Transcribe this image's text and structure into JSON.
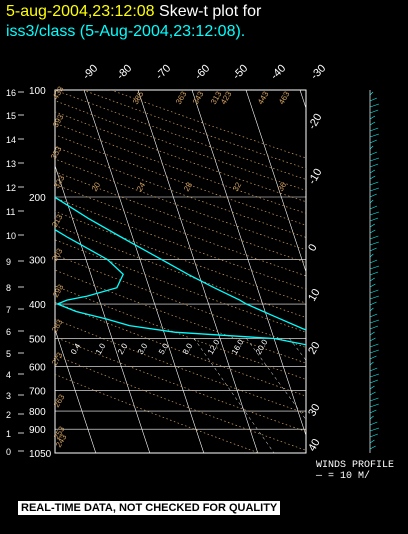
{
  "header": {
    "timestamp": "5-aug-2004,23:12:08",
    "title_prefix": "Skew-t plot for",
    "title_line2": "iss3/class (5-Aug-2004,23:12:08)."
  },
  "disclaimer": "REAL-TIME DATA, NOT CHECKED FOR QUALITY",
  "winds_profile": {
    "title": "WINDS PROFILE",
    "scale": "— = 10 M/"
  },
  "colors": {
    "background": "#000000",
    "trace": "#00ffff",
    "grid": "#ffffff",
    "adiabat": "#d2a060",
    "timestamp": "#ffff00"
  },
  "chart_data": {
    "type": "line",
    "pressure_ticks": [
      "100",
      "200",
      "300",
      "400",
      "500",
      "600",
      "700",
      "800",
      "900",
      "1050"
    ],
    "km_ticks": [
      "16",
      "15",
      "14",
      "13",
      "12",
      "11",
      "10",
      "9",
      "8",
      "7",
      "6",
      "5",
      "4",
      "3",
      "2",
      "1",
      "0"
    ],
    "temp_ticks_top": [
      "-90",
      "-80",
      "-70",
      "-60",
      "-50",
      "-40",
      "-30"
    ],
    "temp_ticks_right": [
      "-20",
      "-10",
      "0",
      "10",
      "20",
      "30",
      "40"
    ],
    "theta_labels": [
      "433",
      "393",
      "353",
      "323",
      "313",
      "303",
      "293",
      "283",
      "273",
      "263",
      "253",
      "243"
    ],
    "dry_adiabat_labels": [
      "385",
      "363",
      "343",
      "313",
      "423",
      "443",
      "463"
    ],
    "mixing_ratio_labels": [
      "0.4",
      "1.0",
      "2.0",
      "3.0",
      "5.0",
      "8.0",
      "12.0",
      "16.0",
      "20.0"
    ],
    "moist_labels": [
      "20",
      "24",
      "28",
      "32",
      "36"
    ],
    "series": [
      {
        "points": [
          [
            100,
            -60
          ],
          [
            110,
            -62
          ],
          [
            120,
            -64
          ],
          [
            135,
            -62
          ],
          [
            150,
            -60
          ],
          [
            170,
            -57
          ],
          [
            190,
            -54
          ],
          [
            200,
            -52
          ],
          [
            230,
            -47
          ],
          [
            260,
            -42
          ],
          [
            300,
            -36
          ],
          [
            330,
            -32
          ],
          [
            360,
            -28
          ],
          [
            390,
            -24
          ],
          [
            400,
            -23
          ],
          [
            430,
            -19
          ],
          [
            470,
            -14
          ],
          [
            500,
            -10
          ],
          [
            530,
            -6
          ],
          [
            560,
            -3
          ],
          [
            600,
            1
          ],
          [
            650,
            5
          ],
          [
            700,
            9
          ],
          [
            750,
            13
          ],
          [
            800,
            16
          ],
          [
            850,
            19
          ],
          [
            900,
            22
          ],
          [
            950,
            25
          ],
          [
            1000,
            28
          ],
          [
            1004,
            31
          ]
        ]
      },
      {
        "points": [
          [
            100,
            -66
          ],
          [
            110,
            -66
          ],
          [
            120,
            -70
          ],
          [
            135,
            -70
          ],
          [
            150,
            -68
          ],
          [
            170,
            -65
          ],
          [
            190,
            -62
          ],
          [
            200,
            -60
          ],
          [
            220,
            -58
          ],
          [
            240,
            -55
          ],
          [
            260,
            -52
          ],
          [
            300,
            -46
          ],
          [
            330,
            -44
          ],
          [
            360,
            -46
          ],
          [
            380,
            -52
          ],
          [
            390,
            -56
          ],
          [
            400,
            -58
          ],
          [
            420,
            -55
          ],
          [
            440,
            -50
          ],
          [
            460,
            -46
          ],
          [
            480,
            -38
          ],
          [
            500,
            -20
          ],
          [
            530,
            -12
          ],
          [
            560,
            -8
          ],
          [
            600,
            -4
          ],
          [
            650,
            1
          ],
          [
            700,
            5
          ],
          [
            750,
            8
          ],
          [
            800,
            10
          ],
          [
            850,
            12
          ],
          [
            900,
            14
          ],
          [
            950,
            17
          ],
          [
            1000,
            20
          ],
          [
            1004,
            24
          ]
        ]
      }
    ]
  }
}
